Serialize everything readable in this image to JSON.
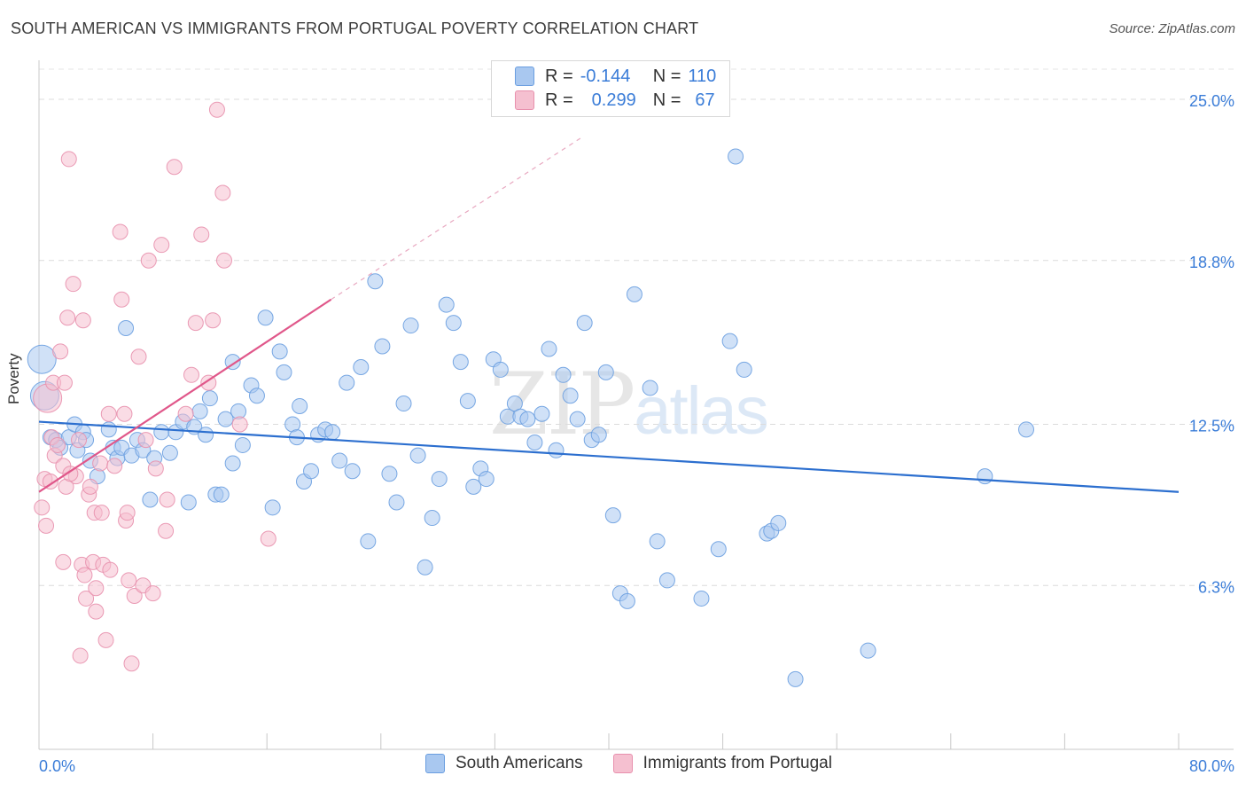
{
  "title": "SOUTH AMERICAN VS IMMIGRANTS FROM PORTUGAL POVERTY CORRELATION CHART",
  "source": "Source: ZipAtlas.com",
  "legend": {
    "rows": [
      {
        "r_label": "R =",
        "r_value": "-0.144",
        "n_label": "N =",
        "n_value": "110"
      },
      {
        "r_label": "R =",
        "r_value": "0.299",
        "n_label": "N =",
        "n_value": "67"
      }
    ]
  },
  "series_names": [
    "South Americans",
    "Immigrants from Portugal"
  ],
  "colors": {
    "blue_fill": "#a9c8f0",
    "blue_stroke": "#6a9ee0",
    "blue_line": "#2c6fcf",
    "pink_fill": "#f5c0d0",
    "pink_stroke": "#e890ad",
    "pink_line": "#e0578a",
    "axis_text": "#3b7dd8"
  },
  "watermark": {
    "zip": "ZIP",
    "atlas": "atlas"
  },
  "chart_data": {
    "type": "scatter",
    "title": "SOUTH AMERICAN VS IMMIGRANTS FROM PORTUGAL POVERTY CORRELATION CHART",
    "xlabel": "",
    "ylabel": "Poverty",
    "xlim": [
      0,
      80
    ],
    "ylim": [
      0,
      26.5
    ],
    "x_tick_labels": [
      "0.0%",
      "80.0%"
    ],
    "y_ticks": [
      6.3,
      12.5,
      18.8,
      25.0
    ],
    "y_tick_labels": [
      "6.3%",
      "12.5%",
      "18.8%",
      "25.0%"
    ],
    "grid": true,
    "series": [
      {
        "name": "South Americans",
        "R": -0.144,
        "N": 110,
        "trend": {
          "x0": 0,
          "y0": 12.6,
          "x1": 80,
          "y1": 9.9
        },
        "points": [
          [
            0.2,
            15.0
          ],
          [
            0.4,
            13.6
          ],
          [
            0.8,
            12.0
          ],
          [
            1.2,
            11.9
          ],
          [
            1.5,
            11.6
          ],
          [
            2.1,
            12.0
          ],
          [
            2.5,
            12.5
          ],
          [
            2.7,
            11.5
          ],
          [
            3.1,
            12.2
          ],
          [
            3.3,
            11.9
          ],
          [
            3.6,
            11.1
          ],
          [
            4.1,
            10.5
          ],
          [
            4.9,
            12.3
          ],
          [
            5.2,
            11.6
          ],
          [
            5.5,
            11.2
          ],
          [
            5.8,
            11.6
          ],
          [
            6.1,
            16.2
          ],
          [
            6.5,
            11.3
          ],
          [
            6.9,
            11.9
          ],
          [
            7.3,
            11.5
          ],
          [
            7.8,
            9.6
          ],
          [
            8.1,
            11.2
          ],
          [
            8.6,
            12.2
          ],
          [
            9.2,
            11.4
          ],
          [
            9.6,
            12.2
          ],
          [
            10.1,
            12.6
          ],
          [
            10.5,
            9.5
          ],
          [
            10.9,
            12.4
          ],
          [
            11.3,
            13.0
          ],
          [
            11.7,
            12.1
          ],
          [
            12.0,
            13.5
          ],
          [
            12.4,
            9.8
          ],
          [
            12.8,
            9.8
          ],
          [
            13.1,
            12.7
          ],
          [
            13.6,
            11.0
          ],
          [
            14.0,
            13.0
          ],
          [
            14.3,
            11.7
          ],
          [
            14.9,
            14.0
          ],
          [
            15.3,
            13.6
          ],
          [
            15.9,
            16.6
          ],
          [
            16.4,
            9.3
          ],
          [
            16.9,
            15.3
          ],
          [
            17.2,
            14.5
          ],
          [
            17.8,
            12.5
          ],
          [
            18.1,
            12.0
          ],
          [
            18.6,
            10.3
          ],
          [
            19.1,
            10.7
          ],
          [
            19.6,
            12.1
          ],
          [
            20.1,
            12.3
          ],
          [
            20.6,
            12.2
          ],
          [
            21.1,
            11.1
          ],
          [
            21.6,
            14.1
          ],
          [
            22.0,
            10.7
          ],
          [
            22.6,
            14.7
          ],
          [
            23.1,
            8.0
          ],
          [
            23.6,
            18.0
          ],
          [
            24.1,
            15.5
          ],
          [
            24.6,
            10.6
          ],
          [
            25.1,
            9.5
          ],
          [
            25.6,
            13.3
          ],
          [
            26.1,
            16.3
          ],
          [
            26.6,
            11.3
          ],
          [
            27.1,
            7.0
          ],
          [
            27.6,
            8.9
          ],
          [
            28.1,
            10.4
          ],
          [
            28.6,
            17.1
          ],
          [
            29.1,
            16.4
          ],
          [
            29.6,
            14.9
          ],
          [
            30.1,
            13.4
          ],
          [
            30.5,
            10.1
          ],
          [
            31.0,
            10.8
          ],
          [
            31.4,
            10.4
          ],
          [
            31.9,
            15.0
          ],
          [
            32.4,
            14.6
          ],
          [
            32.9,
            12.8
          ],
          [
            33.4,
            13.3
          ],
          [
            33.8,
            12.8
          ],
          [
            34.3,
            12.7
          ],
          [
            34.8,
            11.8
          ],
          [
            35.3,
            12.9
          ],
          [
            35.8,
            15.4
          ],
          [
            36.3,
            11.5
          ],
          [
            36.8,
            14.4
          ],
          [
            37.3,
            13.6
          ],
          [
            37.8,
            12.7
          ],
          [
            38.3,
            16.4
          ],
          [
            38.8,
            11.9
          ],
          [
            39.3,
            12.1
          ],
          [
            39.8,
            14.5
          ],
          [
            40.3,
            9.0
          ],
          [
            40.8,
            6.0
          ],
          [
            41.3,
            5.7
          ],
          [
            41.8,
            17.5
          ],
          [
            42.9,
            13.9
          ],
          [
            43.4,
            8.0
          ],
          [
            44.1,
            6.5
          ],
          [
            46.5,
            5.8
          ],
          [
            47.7,
            7.7
          ],
          [
            48.5,
            15.7
          ],
          [
            48.9,
            22.8
          ],
          [
            49.5,
            14.6
          ],
          [
            51.1,
            8.3
          ],
          [
            51.4,
            8.4
          ],
          [
            51.9,
            8.7
          ],
          [
            53.1,
            2.7
          ],
          [
            58.2,
            3.8
          ],
          [
            66.4,
            10.5
          ],
          [
            69.3,
            12.3
          ],
          [
            18.3,
            13.2
          ],
          [
            13.6,
            14.9
          ]
        ]
      },
      {
        "name": "Immigrants from Portugal",
        "R": 0.299,
        "N": 67,
        "trend": {
          "x0": 0,
          "y0": 9.9,
          "x1": 20.5,
          "y1": 17.3
        },
        "trend_extension": {
          "x0": 20.5,
          "y0": 17.3,
          "x1": 38,
          "y1": 23.5
        },
        "points": [
          [
            0.2,
            9.3
          ],
          [
            0.4,
            10.4
          ],
          [
            0.5,
            8.6
          ],
          [
            0.6,
            13.5
          ],
          [
            0.8,
            10.3
          ],
          [
            0.9,
            12.0
          ],
          [
            1.0,
            14.1
          ],
          [
            1.1,
            11.3
          ],
          [
            1.3,
            11.7
          ],
          [
            1.5,
            15.3
          ],
          [
            1.7,
            10.9
          ],
          [
            1.7,
            7.2
          ],
          [
            1.8,
            14.1
          ],
          [
            1.9,
            10.1
          ],
          [
            2.0,
            16.6
          ],
          [
            2.1,
            22.7
          ],
          [
            2.4,
            17.9
          ],
          [
            2.6,
            10.5
          ],
          [
            2.8,
            11.9
          ],
          [
            2.9,
            3.6
          ],
          [
            3.0,
            7.1
          ],
          [
            3.1,
            16.5
          ],
          [
            3.2,
            6.7
          ],
          [
            3.3,
            5.8
          ],
          [
            3.5,
            9.8
          ],
          [
            3.6,
            10.1
          ],
          [
            3.8,
            7.2
          ],
          [
            3.9,
            9.1
          ],
          [
            4.0,
            5.3
          ],
          [
            4.3,
            11.0
          ],
          [
            4.4,
            9.1
          ],
          [
            4.5,
            7.1
          ],
          [
            4.7,
            4.2
          ],
          [
            4.9,
            12.9
          ],
          [
            5.0,
            6.9
          ],
          [
            5.3,
            10.9
          ],
          [
            5.7,
            19.9
          ],
          [
            5.8,
            17.3
          ],
          [
            6.0,
            12.9
          ],
          [
            6.1,
            8.8
          ],
          [
            6.3,
            6.5
          ],
          [
            6.5,
            3.3
          ],
          [
            6.7,
            5.9
          ],
          [
            7.0,
            15.1
          ],
          [
            7.3,
            6.3
          ],
          [
            7.5,
            11.9
          ],
          [
            7.7,
            18.8
          ],
          [
            8.0,
            6.0
          ],
          [
            8.2,
            10.8
          ],
          [
            8.6,
            19.4
          ],
          [
            8.9,
            8.4
          ],
          [
            9.0,
            9.6
          ],
          [
            9.5,
            22.4
          ],
          [
            10.3,
            12.9
          ],
          [
            10.7,
            14.4
          ],
          [
            11.0,
            16.4
          ],
          [
            11.4,
            19.8
          ],
          [
            11.9,
            14.1
          ],
          [
            12.2,
            16.5
          ],
          [
            12.5,
            24.6
          ],
          [
            12.9,
            21.4
          ],
          [
            13.0,
            18.8
          ],
          [
            14.1,
            12.5
          ],
          [
            16.1,
            8.1
          ],
          [
            2.2,
            10.6
          ],
          [
            4.0,
            6.2
          ],
          [
            6.2,
            9.1
          ]
        ]
      }
    ]
  }
}
